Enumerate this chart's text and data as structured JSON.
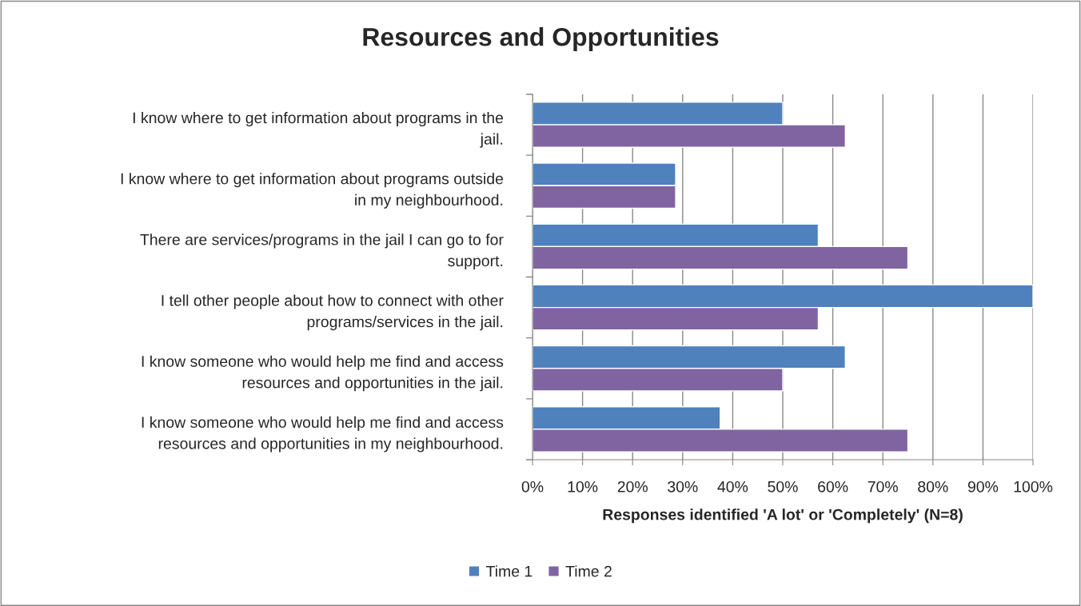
{
  "chart_data": {
    "type": "bar",
    "orientation": "horizontal",
    "title": "Resources and Opportunities",
    "xlabel": "Responses identified 'A lot' or 'Completely' (N=8)",
    "categories": [
      "I know where to get information about programs in the\njail.",
      "I know where to get information about programs outside\nin my neighbourhood.",
      "There are services/programs in the jail I can go to for\nsupport.",
      "I tell other people about how to connect with other\nprograms/services in the jail.",
      "I know someone who would help me find and access\nresources and opportunities in the jail.",
      "I know someone who would help me find and access\nresources and opportunities in my neighbourhood."
    ],
    "series": [
      {
        "name": "Time 1",
        "color": "#4f81bd",
        "values": [
          50,
          28.6,
          57.1,
          100,
          62.5,
          37.5
        ]
      },
      {
        "name": "Time 2",
        "color": "#8064a2",
        "values": [
          62.5,
          28.6,
          75,
          57.1,
          50,
          75
        ]
      }
    ],
    "xlim": [
      0,
      100
    ],
    "xticks": [
      {
        "value": 0,
        "label": "0%"
      },
      {
        "value": 10,
        "label": "10%"
      },
      {
        "value": 20,
        "label": "20%"
      },
      {
        "value": 30,
        "label": "30%"
      },
      {
        "value": 40,
        "label": "40%"
      },
      {
        "value": 50,
        "label": "50%"
      },
      {
        "value": 60,
        "label": "60%"
      },
      {
        "value": 70,
        "label": "70%"
      },
      {
        "value": 80,
        "label": "80%"
      },
      {
        "value": 90,
        "label": "90%"
      },
      {
        "value": 100,
        "label": "100%"
      }
    ],
    "grid": "x",
    "legend": "bottom"
  }
}
